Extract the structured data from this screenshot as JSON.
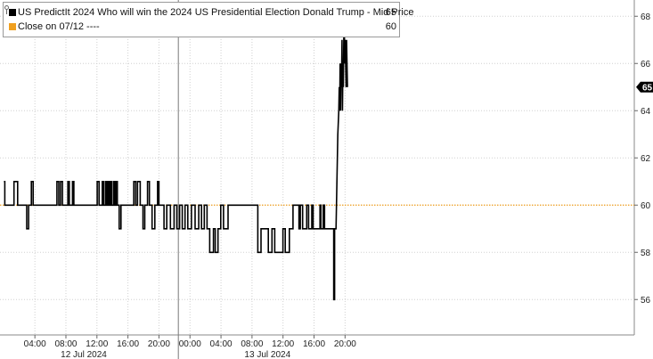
{
  "legend": {
    "series_label": "US PredictIt 2024 Who will win the 2024 US Presidential Election Donald Trump - Mid Price",
    "series_value": "65",
    "close_label": "Close on 07/12 ----",
    "close_value": "60"
  },
  "colors": {
    "series": "#000000",
    "close_line": "#f0a020",
    "grid": "#d0d0d0",
    "badge": "#000000"
  },
  "chart_data": {
    "type": "line",
    "x_unit": "hours since 11 Jul 2024 24:00",
    "ylim": [
      54.5,
      68.5
    ],
    "y_ticks": [
      56,
      58,
      60,
      62,
      64,
      66,
      68
    ],
    "x_ticks": [
      "04:00",
      "08:00",
      "12:00",
      "16:00",
      "20:00",
      "00:00",
      "04:00",
      "08:00",
      "12:00",
      "16:00",
      "20:00"
    ],
    "date_labels": [
      "12 Jul 2024",
      "13 Jul 2024"
    ],
    "close_value": 60,
    "last_value": 65,
    "series": [
      {
        "name": "US PredictIt 2024 Who will win the 2024 US Presidential Election Donald Trump - Mid Price",
        "points": [
          [
            0.0,
            61
          ],
          [
            0.2,
            61
          ],
          [
            0.2,
            60
          ],
          [
            2.2,
            60
          ],
          [
            2.2,
            61
          ],
          [
            3.0,
            61
          ],
          [
            3.0,
            60
          ],
          [
            5.0,
            60
          ],
          [
            5.0,
            59
          ],
          [
            5.4,
            59
          ],
          [
            5.4,
            60
          ],
          [
            6.0,
            60
          ],
          [
            6.0,
            61
          ],
          [
            6.4,
            61
          ],
          [
            6.4,
            60
          ],
          [
            11.6,
            60
          ],
          [
            11.6,
            61
          ],
          [
            12.0,
            61
          ],
          [
            12.0,
            60
          ],
          [
            12.4,
            60
          ],
          [
            12.4,
            61
          ],
          [
            12.8,
            61
          ],
          [
            12.8,
            60
          ],
          [
            14.0,
            60
          ],
          [
            14.0,
            61
          ],
          [
            14.3,
            61
          ],
          [
            14.3,
            60
          ],
          [
            15.0,
            60
          ],
          [
            15.0,
            61
          ],
          [
            15.3,
            61
          ],
          [
            15.3,
            60
          ],
          [
            20.4,
            60
          ],
          [
            20.4,
            61
          ],
          [
            20.8,
            61
          ],
          [
            20.8,
            60
          ],
          [
            21.5,
            60
          ],
          [
            21.5,
            61
          ],
          [
            21.8,
            61
          ],
          [
            21.8,
            60
          ],
          [
            22.2,
            60
          ],
          [
            22.2,
            61
          ],
          [
            22.5,
            61
          ],
          [
            22.5,
            60
          ],
          [
            22.8,
            60
          ],
          [
            22.8,
            61
          ],
          [
            23.0,
            61
          ],
          [
            23.0,
            60
          ],
          [
            23.3,
            60
          ],
          [
            23.3,
            61
          ],
          [
            23.6,
            61
          ],
          [
            23.6,
            60
          ],
          [
            24.0,
            60
          ],
          [
            24.0,
            61
          ],
          [
            24.2,
            61
          ],
          [
            24.2,
            60
          ],
          [
            24.5,
            60
          ],
          [
            24.5,
            61
          ],
          [
            24.8,
            61
          ],
          [
            24.8,
            60
          ],
          [
            25.2,
            60
          ],
          [
            25.2,
            59
          ],
          [
            25.6,
            59
          ],
          [
            25.6,
            60
          ],
          [
            28.4,
            60
          ],
          [
            28.4,
            61
          ],
          [
            28.8,
            61
          ],
          [
            28.8,
            60
          ],
          [
            29.2,
            60
          ],
          [
            29.2,
            61
          ],
          [
            29.8,
            61
          ],
          [
            29.8,
            60
          ],
          [
            30.4,
            60
          ],
          [
            30.4,
            59
          ],
          [
            30.8,
            59
          ],
          [
            30.8,
            60
          ],
          [
            31.4,
            60
          ],
          [
            31.4,
            61
          ],
          [
            31.8,
            61
          ],
          [
            31.8,
            60
          ],
          [
            32.4,
            60
          ],
          [
            32.4,
            59
          ],
          [
            33.0,
            59
          ],
          [
            33.0,
            60
          ],
          [
            33.6,
            60
          ],
          [
            33.6,
            61
          ],
          [
            33.9,
            61
          ],
          [
            33.9,
            60
          ],
          [
            35.0,
            60
          ],
          [
            35.0,
            59
          ],
          [
            35.6,
            59
          ],
          [
            35.6,
            60
          ],
          [
            36.4,
            60
          ],
          [
            36.4,
            59
          ],
          [
            37.2,
            59
          ],
          [
            37.2,
            60
          ],
          [
            37.8,
            60
          ],
          [
            37.8,
            59
          ],
          [
            38.4,
            59
          ],
          [
            38.4,
            60
          ],
          [
            39.0,
            60
          ],
          [
            39.0,
            59
          ],
          [
            39.6,
            59
          ],
          [
            39.6,
            60
          ],
          [
            40.2,
            60
          ],
          [
            40.2,
            59
          ],
          [
            41.0,
            59
          ],
          [
            41.0,
            60
          ],
          [
            41.8,
            60
          ],
          [
            41.8,
            59
          ],
          [
            42.6,
            59
          ],
          [
            42.6,
            60
          ],
          [
            43.2,
            60
          ],
          [
            43.2,
            59
          ],
          [
            43.8,
            59
          ],
          [
            43.8,
            60
          ],
          [
            44.4,
            60
          ],
          [
            44.4,
            59
          ],
          [
            45.0,
            59
          ],
          [
            45.0,
            58
          ],
          [
            45.8,
            58
          ],
          [
            45.8,
            59
          ],
          [
            46.2,
            59
          ],
          [
            46.2,
            58
          ],
          [
            46.8,
            58
          ],
          [
            46.8,
            59
          ],
          [
            47.4,
            59
          ],
          [
            47.4,
            60
          ],
          [
            48.0,
            60
          ],
          [
            48.0,
            59
          ],
          [
            49.0,
            59
          ],
          [
            49.0,
            60
          ],
          [
            55.5,
            60
          ],
          [
            55.5,
            58
          ],
          [
            56.2,
            58
          ],
          [
            56.2,
            59
          ],
          [
            57.8,
            59
          ],
          [
            57.8,
            58
          ],
          [
            58.6,
            58
          ],
          [
            58.6,
            59
          ],
          [
            59.2,
            59
          ],
          [
            59.2,
            58
          ],
          [
            61.0,
            58
          ],
          [
            61.0,
            59
          ],
          [
            61.5,
            59
          ],
          [
            61.5,
            58
          ],
          [
            62.4,
            58
          ],
          [
            62.4,
            59
          ],
          [
            63.2,
            59
          ],
          [
            63.2,
            60
          ],
          [
            64.5,
            60
          ],
          [
            64.5,
            59
          ],
          [
            64.8,
            59
          ],
          [
            64.8,
            60
          ],
          [
            65.3,
            60
          ],
          [
            65.3,
            59
          ],
          [
            66.2,
            59
          ],
          [
            66.2,
            60
          ],
          [
            66.6,
            60
          ],
          [
            66.6,
            59
          ],
          [
            67.3,
            59
          ],
          [
            67.3,
            60
          ],
          [
            67.6,
            60
          ],
          [
            67.6,
            59
          ],
          [
            69.1,
            59
          ],
          [
            69.1,
            60
          ],
          [
            69.3,
            60
          ],
          [
            69.3,
            59
          ],
          [
            69.8,
            59
          ],
          [
            69.8,
            60
          ],
          [
            70.1,
            60
          ],
          [
            70.1,
            59
          ],
          [
            72.1,
            59
          ],
          [
            72.1,
            56
          ],
          [
            72.3,
            56
          ],
          [
            72.3,
            59
          ],
          [
            72.6,
            59
          ],
          [
            72.8,
            61
          ],
          [
            73.0,
            63
          ],
          [
            73.2,
            64
          ],
          [
            73.3,
            65
          ],
          [
            73.4,
            64
          ],
          [
            73.5,
            66
          ],
          [
            73.6,
            64
          ],
          [
            73.7,
            66
          ],
          [
            73.8,
            65
          ],
          [
            73.9,
            67
          ],
          [
            74.0,
            64
          ],
          [
            74.1,
            66
          ],
          [
            74.2,
            65
          ],
          [
            74.3,
            67
          ],
          [
            74.4,
            68
          ],
          [
            74.5,
            66
          ],
          [
            74.6,
            67
          ],
          [
            74.7,
            66
          ],
          [
            74.8,
            65
          ],
          [
            74.9,
            67
          ],
          [
            75.0,
            66
          ],
          [
            75.1,
            65
          ]
        ]
      }
    ]
  }
}
